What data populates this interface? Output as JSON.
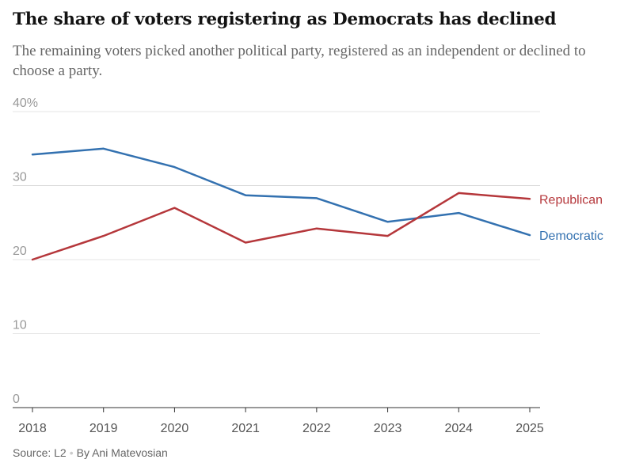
{
  "title": "The share of voters registering as Democrats has declined",
  "subtitle": "The remaining voters picked another political party, registered as an independent or declined to choose a party.",
  "source": {
    "text": "Source: L2",
    "byline": "By Ani Matevosian"
  },
  "colors": {
    "republican": "#b5373b",
    "democratic": "#3371b0",
    "grid": "#e6e6e6",
    "axis": "#333333"
  },
  "chart_data": {
    "type": "line",
    "x": [
      "2018",
      "2019",
      "2020",
      "2021",
      "2022",
      "2023",
      "2024",
      "2025"
    ],
    "ylim": [
      0,
      40
    ],
    "yticks": [
      0,
      10,
      20,
      30,
      40
    ],
    "ytick_labels": [
      "0",
      "10",
      "20",
      "30",
      "40%"
    ],
    "grid": true,
    "series": [
      {
        "name": "Republican",
        "color": "#b5373b",
        "values": [
          20.0,
          23.2,
          27.0,
          22.3,
          24.2,
          23.2,
          29.0,
          28.2
        ]
      },
      {
        "name": "Democratic",
        "color": "#3371b0",
        "values": [
          34.2,
          35.0,
          32.5,
          28.7,
          28.3,
          25.1,
          26.3,
          23.3
        ]
      }
    ]
  }
}
